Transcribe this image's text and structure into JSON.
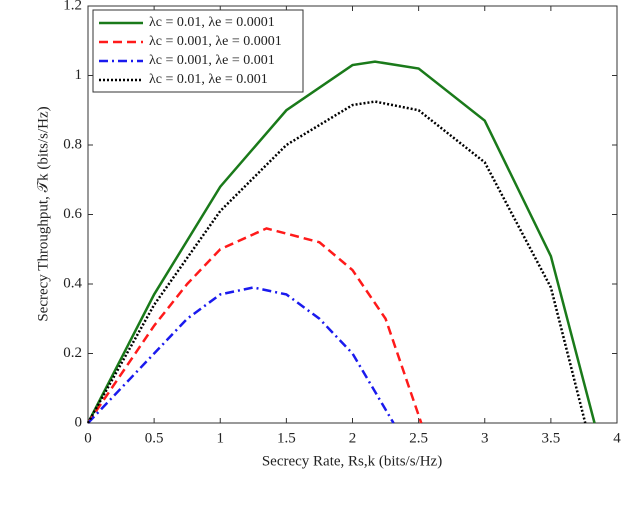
{
  "chart_data": {
    "type": "line",
    "xlabel": "Secrecy Rate, Rs,k (bits/s/Hz)",
    "ylabel": "Secrecy Throughput, 𝒯k (bits/s/Hz)",
    "xlim": [
      0,
      4
    ],
    "xticks": [
      0,
      0.5,
      1,
      1.5,
      2,
      2.5,
      3,
      3.5,
      4
    ],
    "ylim": [
      0,
      1.2
    ],
    "yticks": [
      0,
      0.2,
      0.4,
      0.6,
      0.8,
      1,
      1.2
    ],
    "legend": "upper-left",
    "series": [
      {
        "name": "λc = 0.01, λe = 0.0001",
        "color": "#1a7a1a",
        "dash": "solid",
        "x": [
          0,
          0.5,
          1,
          1.5,
          2,
          2.17,
          2.5,
          3,
          3.5,
          3.83
        ],
        "values": [
          0,
          0.37,
          0.68,
          0.9,
          1.03,
          1.04,
          1.02,
          0.87,
          0.48,
          0
        ]
      },
      {
        "name": "λc = 0.001, λe = 0.0001",
        "color": "#ff1a1a",
        "dash": "dashed",
        "x": [
          0,
          0.25,
          0.5,
          0.75,
          1,
          1.35,
          1.75,
          2,
          2.25,
          2.52
        ],
        "values": [
          0,
          0.14,
          0.28,
          0.4,
          0.5,
          0.56,
          0.52,
          0.44,
          0.3,
          0
        ]
      },
      {
        "name": "λc = 0.001, λe = 0.001",
        "color": "#1a1aee",
        "dash": "dashdot",
        "x": [
          0,
          0.25,
          0.5,
          0.75,
          1,
          1.25,
          1.5,
          1.75,
          2,
          2.31
        ],
        "values": [
          0,
          0.1,
          0.2,
          0.3,
          0.37,
          0.39,
          0.37,
          0.3,
          0.2,
          0
        ]
      },
      {
        "name": "λc = 0.01, λe = 0.001",
        "color": "#000000",
        "dash": "dotted",
        "x": [
          0,
          0.5,
          1,
          1.5,
          2,
          2.17,
          2.5,
          3,
          3.5,
          3.76
        ],
        "values": [
          0,
          0.34,
          0.61,
          0.8,
          0.915,
          0.925,
          0.9,
          0.75,
          0.39,
          0
        ]
      }
    ]
  }
}
